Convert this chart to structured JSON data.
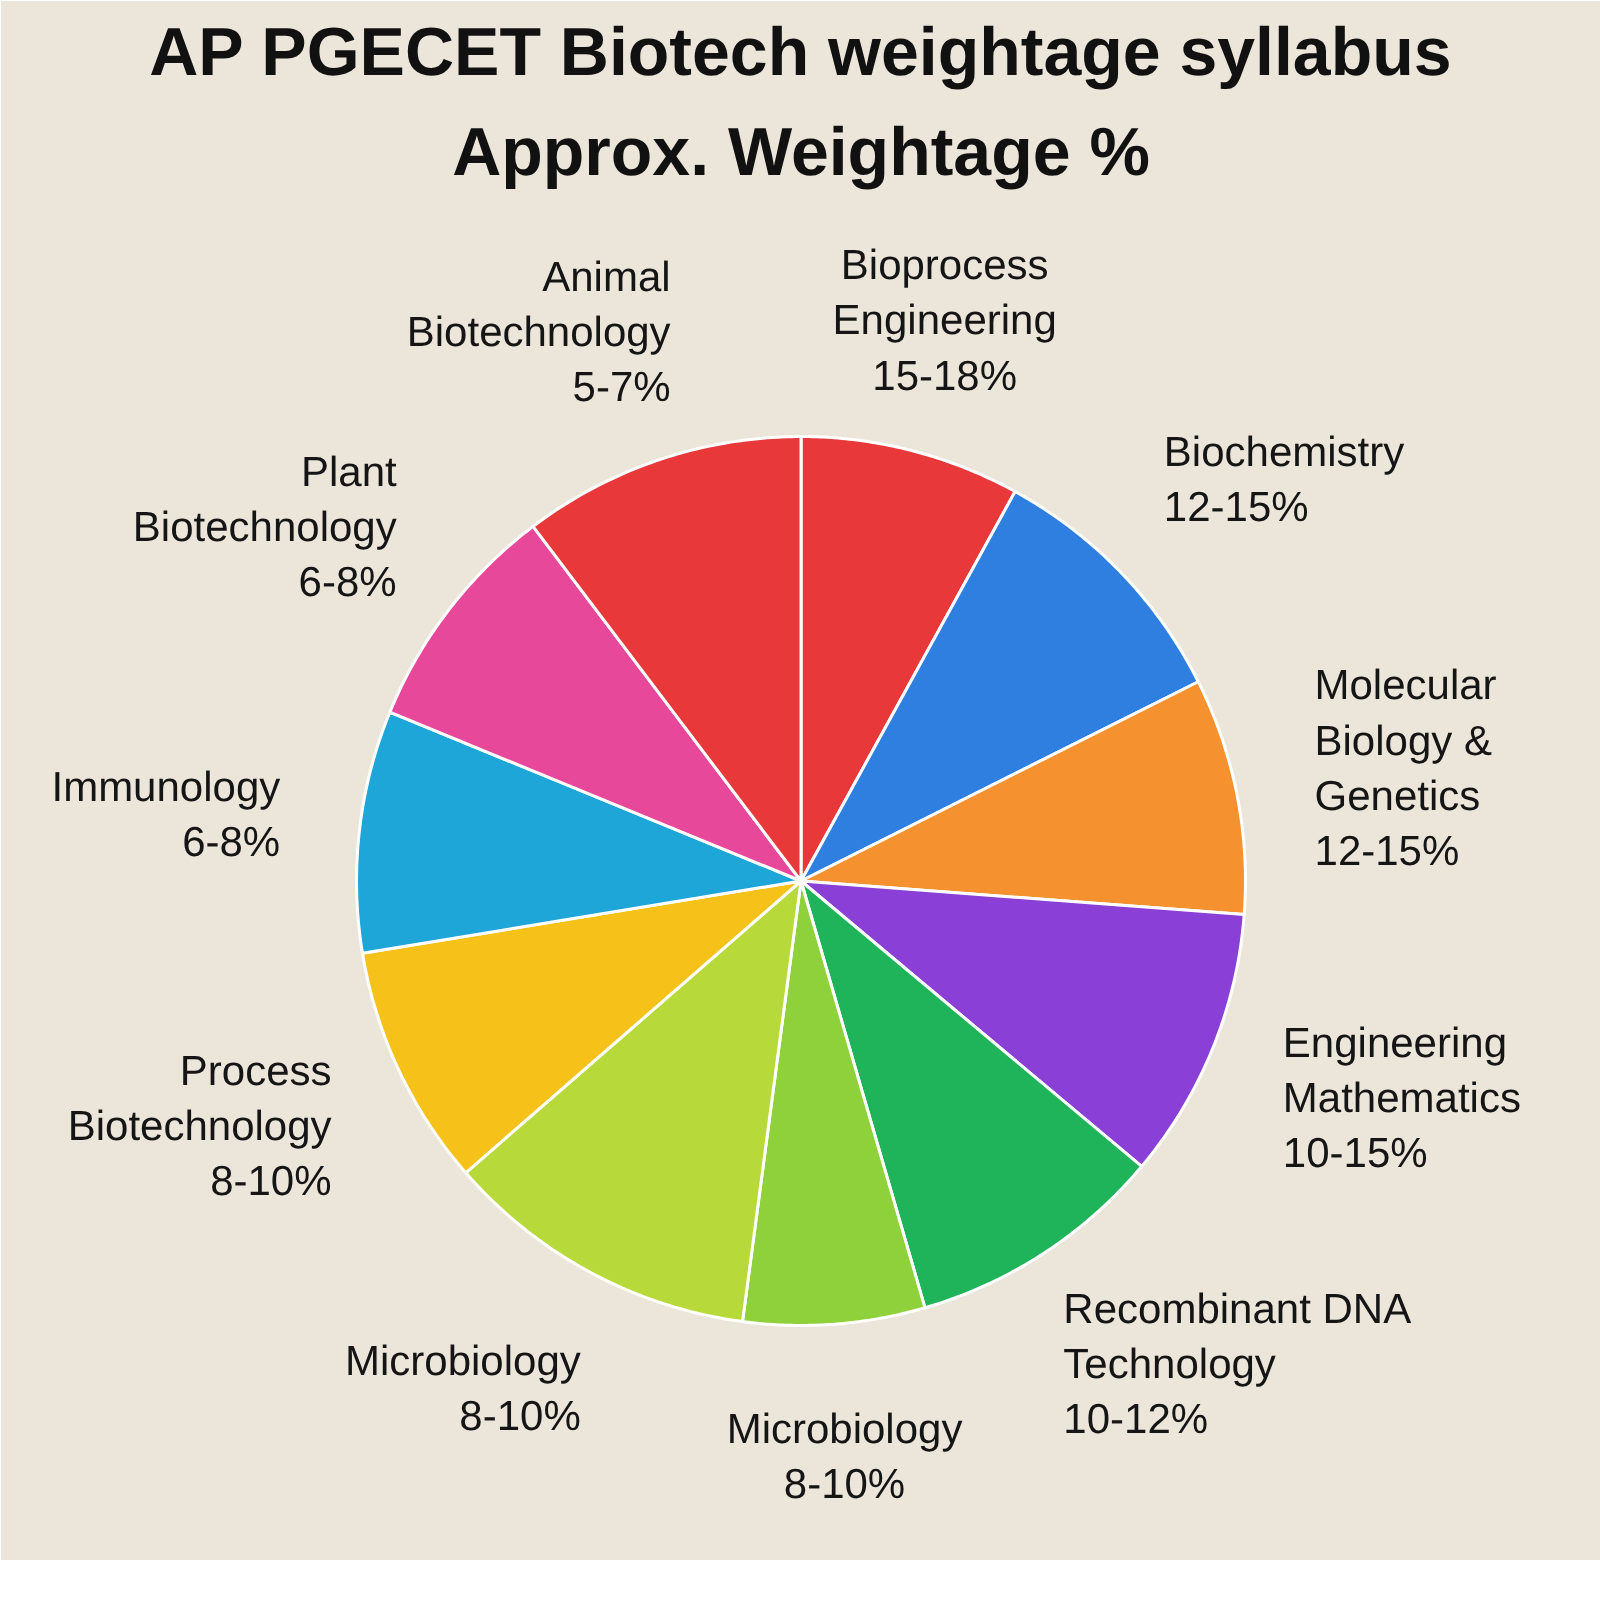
{
  "chart_data": {
    "type": "pie",
    "title": "AP PGECET Biotech weightage syllabus",
    "subtitle": "Approx. Weightage %",
    "categories": [
      "Bioprocess Engineering 15-18%",
      "Biochemistry 12-15%",
      "Molecular Biology & Genetics 12-15%",
      "Engineering Mathematics 10-15%",
      "Recombinant DNA Technology 10-12%",
      "Microbiology 8-10%",
      "Microbiology 8-10%",
      "Process Biotechnology 8-10%",
      "Immunology 6-8%",
      "Plant Biotechnology 6-8%",
      "Animal Biotechnology 5-7%"
    ],
    "values": [
      8.0,
      9.6,
      8.6,
      9.9,
      9.4,
      6.6,
      11.5,
      8.8,
      8.8,
      8.5,
      10.3
    ],
    "colors": [
      "#e8383a",
      "#2f7fe0",
      "#f5912e",
      "#8a3fd6",
      "#1fb35a",
      "#8ed13a",
      "#b7d93a",
      "#f6c21a",
      "#1fa6d8",
      "#e8489a",
      "#e8383a"
    ]
  }
}
